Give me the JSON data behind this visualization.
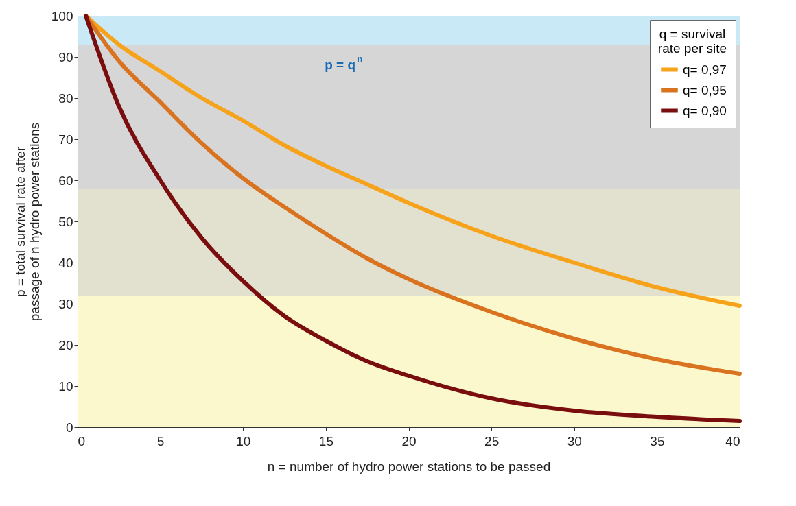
{
  "chart_data": {
    "type": "line",
    "xlabel": "n = number of  hydro power stations to be passed",
    "ylabel": "p = total survival rate after passage of n hydro power stations",
    "legend_title": "q = survival rate per site",
    "x": [
      0.5,
      2.5,
      5,
      7.5,
      10,
      12.5,
      15,
      17.5,
      20,
      25,
      30,
      35,
      40
    ],
    "series": [
      {
        "name": "q= 0,97",
        "color": "#f7a21b",
        "values": [
          100,
          93,
          86.5,
          80,
          74.5,
          68.5,
          63.5,
          59,
          54.5,
          46.5,
          40,
          34,
          29.5
        ]
      },
      {
        "name": "q= 0,95",
        "color": "#d9731f",
        "values": [
          100,
          89,
          79,
          69,
          60.5,
          53.5,
          47,
          41,
          36,
          28,
          21.5,
          16.5,
          13
        ]
      },
      {
        "name": "q= 0,90",
        "color": "#7a0e0e",
        "values": [
          100,
          78,
          60,
          46,
          35.5,
          27,
          21,
          16,
          12.5,
          7,
          4,
          2.5,
          1.5
        ]
      }
    ],
    "xlim": [
      0,
      40
    ],
    "xticks": [
      0,
      5,
      10,
      15,
      20,
      25,
      30,
      35,
      40
    ],
    "ylim": [
      0,
      100
    ],
    "yticks": [
      0,
      10,
      20,
      30,
      40,
      50,
      60,
      70,
      80,
      90,
      100
    ],
    "bands": [
      {
        "axis": "y",
        "from": 93,
        "to": 100,
        "color": "#c9e9f7"
      },
      {
        "axis": "y",
        "from": 58,
        "to": 93,
        "color": "#d6d6d6"
      },
      {
        "axis": "y",
        "from": 32,
        "to": 58,
        "color": "#e2e0cf"
      },
      {
        "axis": "y",
        "from": 0,
        "to": 32,
        "color": "#fcf8cd"
      }
    ],
    "annotations": [
      "p = q$^{n}$"
    ],
    "grid": true,
    "legend": "top right",
    "marker": "none",
    "line_style": "solid"
  }
}
